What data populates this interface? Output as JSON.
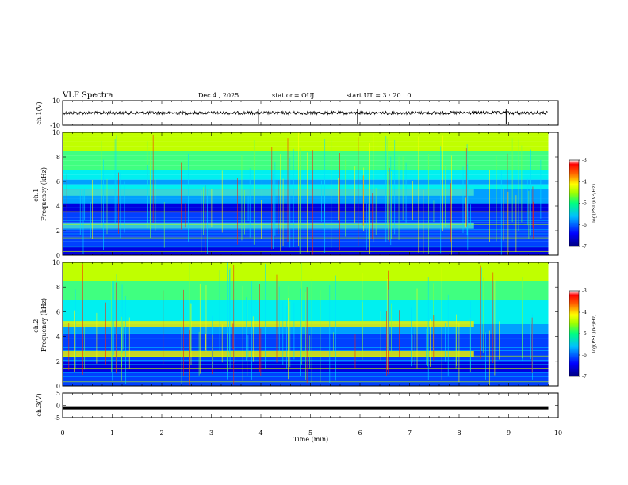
{
  "header": {
    "title": "VLF Spectra",
    "date": "Dec.4 , 2025",
    "station": "station= OUJ",
    "start": "start  UT =   3 : 20 : 0"
  },
  "chart_data": [
    {
      "type": "line",
      "name": "ch1-waveform",
      "ylabel": "ch.1(V)",
      "ylim": [
        -10,
        10
      ],
      "yticks": [
        10,
        -10
      ],
      "baseline": 0,
      "spikes_min": [
        3.95,
        5.95,
        8.95
      ]
    },
    {
      "type": "heatmap",
      "name": "ch1-spectrogram",
      "ylabel": "ch.1\nFrequency (kHz)",
      "ylabel_lines": [
        "ch.1",
        "Frequency (kHz)"
      ],
      "ylim": [
        0,
        10
      ],
      "yticks": [
        0,
        2,
        4,
        6,
        8,
        10
      ],
      "xlim": [
        0,
        10
      ],
      "data_end_min": 9.8,
      "bands_khz": [
        {
          "f": 5.1,
          "until_min": 8.3
        },
        {
          "f": 2.4,
          "until_min": 8.3
        }
      ],
      "colorbar": {
        "label": "log(PSD)(V²/Hz)",
        "ticks": [
          -3,
          -4,
          -5,
          -6,
          -7
        ],
        "range": [
          -7,
          -3
        ]
      }
    },
    {
      "type": "heatmap",
      "name": "ch2-spectrogram",
      "ylabel": "ch.2\nFrequency (kHz)",
      "ylabel_lines": [
        "ch.2",
        "Frequency (kHz)"
      ],
      "ylim": [
        0,
        10
      ],
      "yticks": [
        0,
        2,
        4,
        6,
        8,
        10
      ],
      "xlim": [
        0,
        10
      ],
      "data_end_min": 9.8,
      "bands_khz": [
        {
          "f": 5.0,
          "until_min": 8.3
        },
        {
          "f": 2.6,
          "until_min": 8.3
        }
      ],
      "colorbar": {
        "label": "log(PSD)(V²/Hz)",
        "ticks": [
          -3,
          -4,
          -5,
          -6,
          -7
        ],
        "range": [
          -7,
          -3
        ]
      }
    },
    {
      "type": "line",
      "name": "ch3-waveform",
      "ylabel": "ch.3(V)",
      "ylim": [
        -5,
        5
      ],
      "yticks": [
        5,
        0,
        -5
      ],
      "value": -1.0
    }
  ],
  "x_axis": {
    "label": "Time  (min)",
    "ticks": [
      "0",
      "1",
      "2",
      "3",
      "4",
      "5",
      "6",
      "7",
      "8",
      "9",
      "10"
    ]
  },
  "colors": {
    "colormap": [
      "#00007a",
      "#0000e0",
      "#0040ff",
      "#00a0ff",
      "#00f0f0",
      "#40ff80",
      "#c0ff00",
      "#ffff00",
      "#ff8000",
      "#ff0000",
      "#a00000"
    ]
  }
}
